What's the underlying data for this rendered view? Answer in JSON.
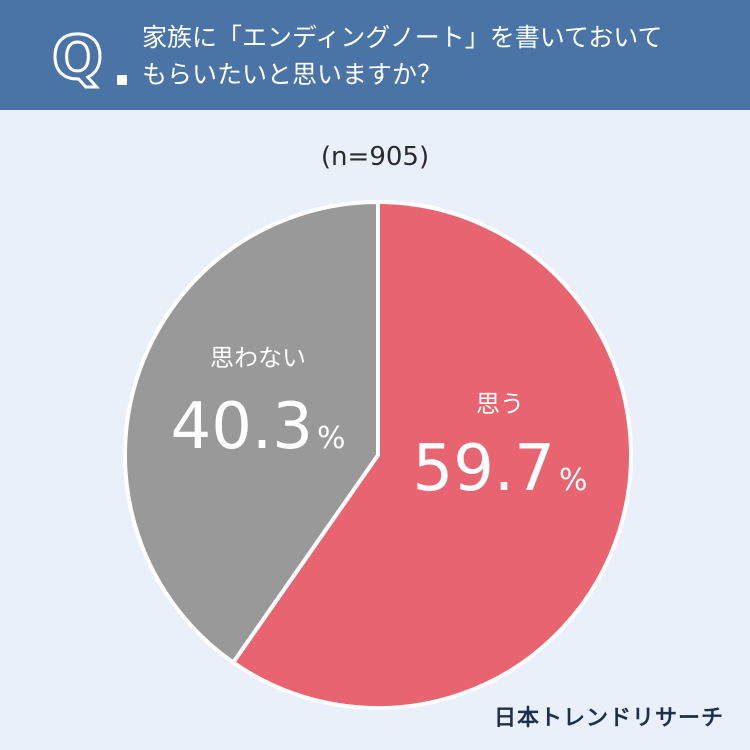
{
  "header": {
    "q_mark": "Q",
    "question_line1": "家族に「エンディングノート」を書いておいて",
    "question_line2": "もらいたいと思いますか？"
  },
  "sample_size": "(n=905)",
  "brand": "日本トレンドリサーチ",
  "colors": {
    "header": "#4a74a6",
    "background": "#e9f0fa",
    "yes": "#e86471",
    "no": "#999999"
  },
  "chart_data": {
    "type": "pie",
    "title": "家族に「エンディングノート」を書いておいてもらいたいと思いますか？",
    "n": 905,
    "slices": [
      {
        "label": "思う",
        "value": 59.7,
        "display": "59.7",
        "unit": "%",
        "color": "#e86471"
      },
      {
        "label": "思わない",
        "value": 40.3,
        "display": "40.3",
        "unit": "%",
        "color": "#999999"
      }
    ]
  }
}
